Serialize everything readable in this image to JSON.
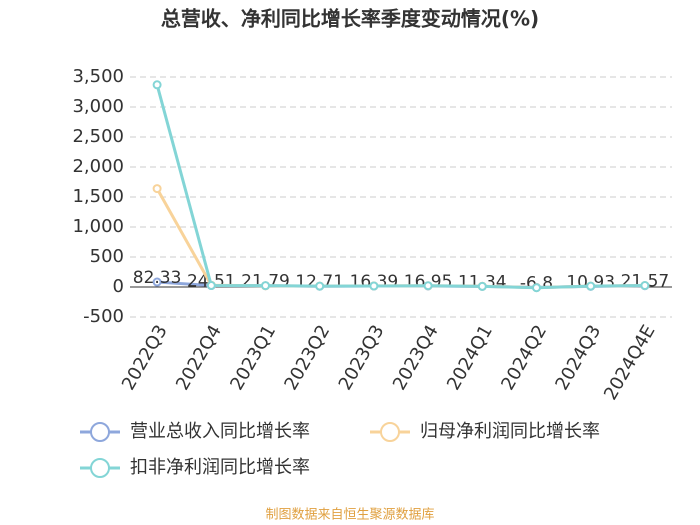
{
  "chart_data": {
    "type": "line",
    "title": "总营收、净利同比增长率季度变动情况(%)",
    "categories": [
      "2022Q3",
      "2022Q4",
      "2023Q1",
      "2023Q2",
      "2023Q3",
      "2023Q4",
      "2024Q1",
      "2024Q2",
      "2024Q3",
      "2024Q4E"
    ],
    "series": [
      {
        "name": "营业总收入同比增长率",
        "color": "#8ea7dc",
        "labels": true,
        "values": [
          82.33,
          24.51,
          21.79,
          12.71,
          16.39,
          16.95,
          11.34,
          -6.8,
          10.93,
          21.57
        ]
      },
      {
        "name": "归母净利润同比增长率",
        "color": "#f8d39a",
        "labels": false,
        "values": [
          1640,
          30,
          20,
          15,
          18,
          20,
          12,
          -10,
          15,
          25
        ]
      },
      {
        "name": "扣非净利润同比增长率",
        "color": "#83d5d6",
        "labels": false,
        "values": [
          3370,
          25,
          22,
          14,
          17,
          21,
          10,
          -12,
          14,
          24
        ]
      }
    ],
    "ylim": [
      -500,
      3500
    ],
    "yticks": [
      -500,
      0,
      500,
      {
        "value": 1000,
        "label": "1,000"
      },
      {
        "value": 1500,
        "label": "1,500"
      },
      {
        "value": 2000,
        "label": "2,000"
      },
      {
        "value": 2500,
        "label": "2,500"
      },
      {
        "value": 3000,
        "label": "3,000"
      },
      {
        "value": 3500,
        "label": "3,500"
      }
    ],
    "grid": true,
    "footer": "制图数据来自恒生聚源数据库"
  }
}
